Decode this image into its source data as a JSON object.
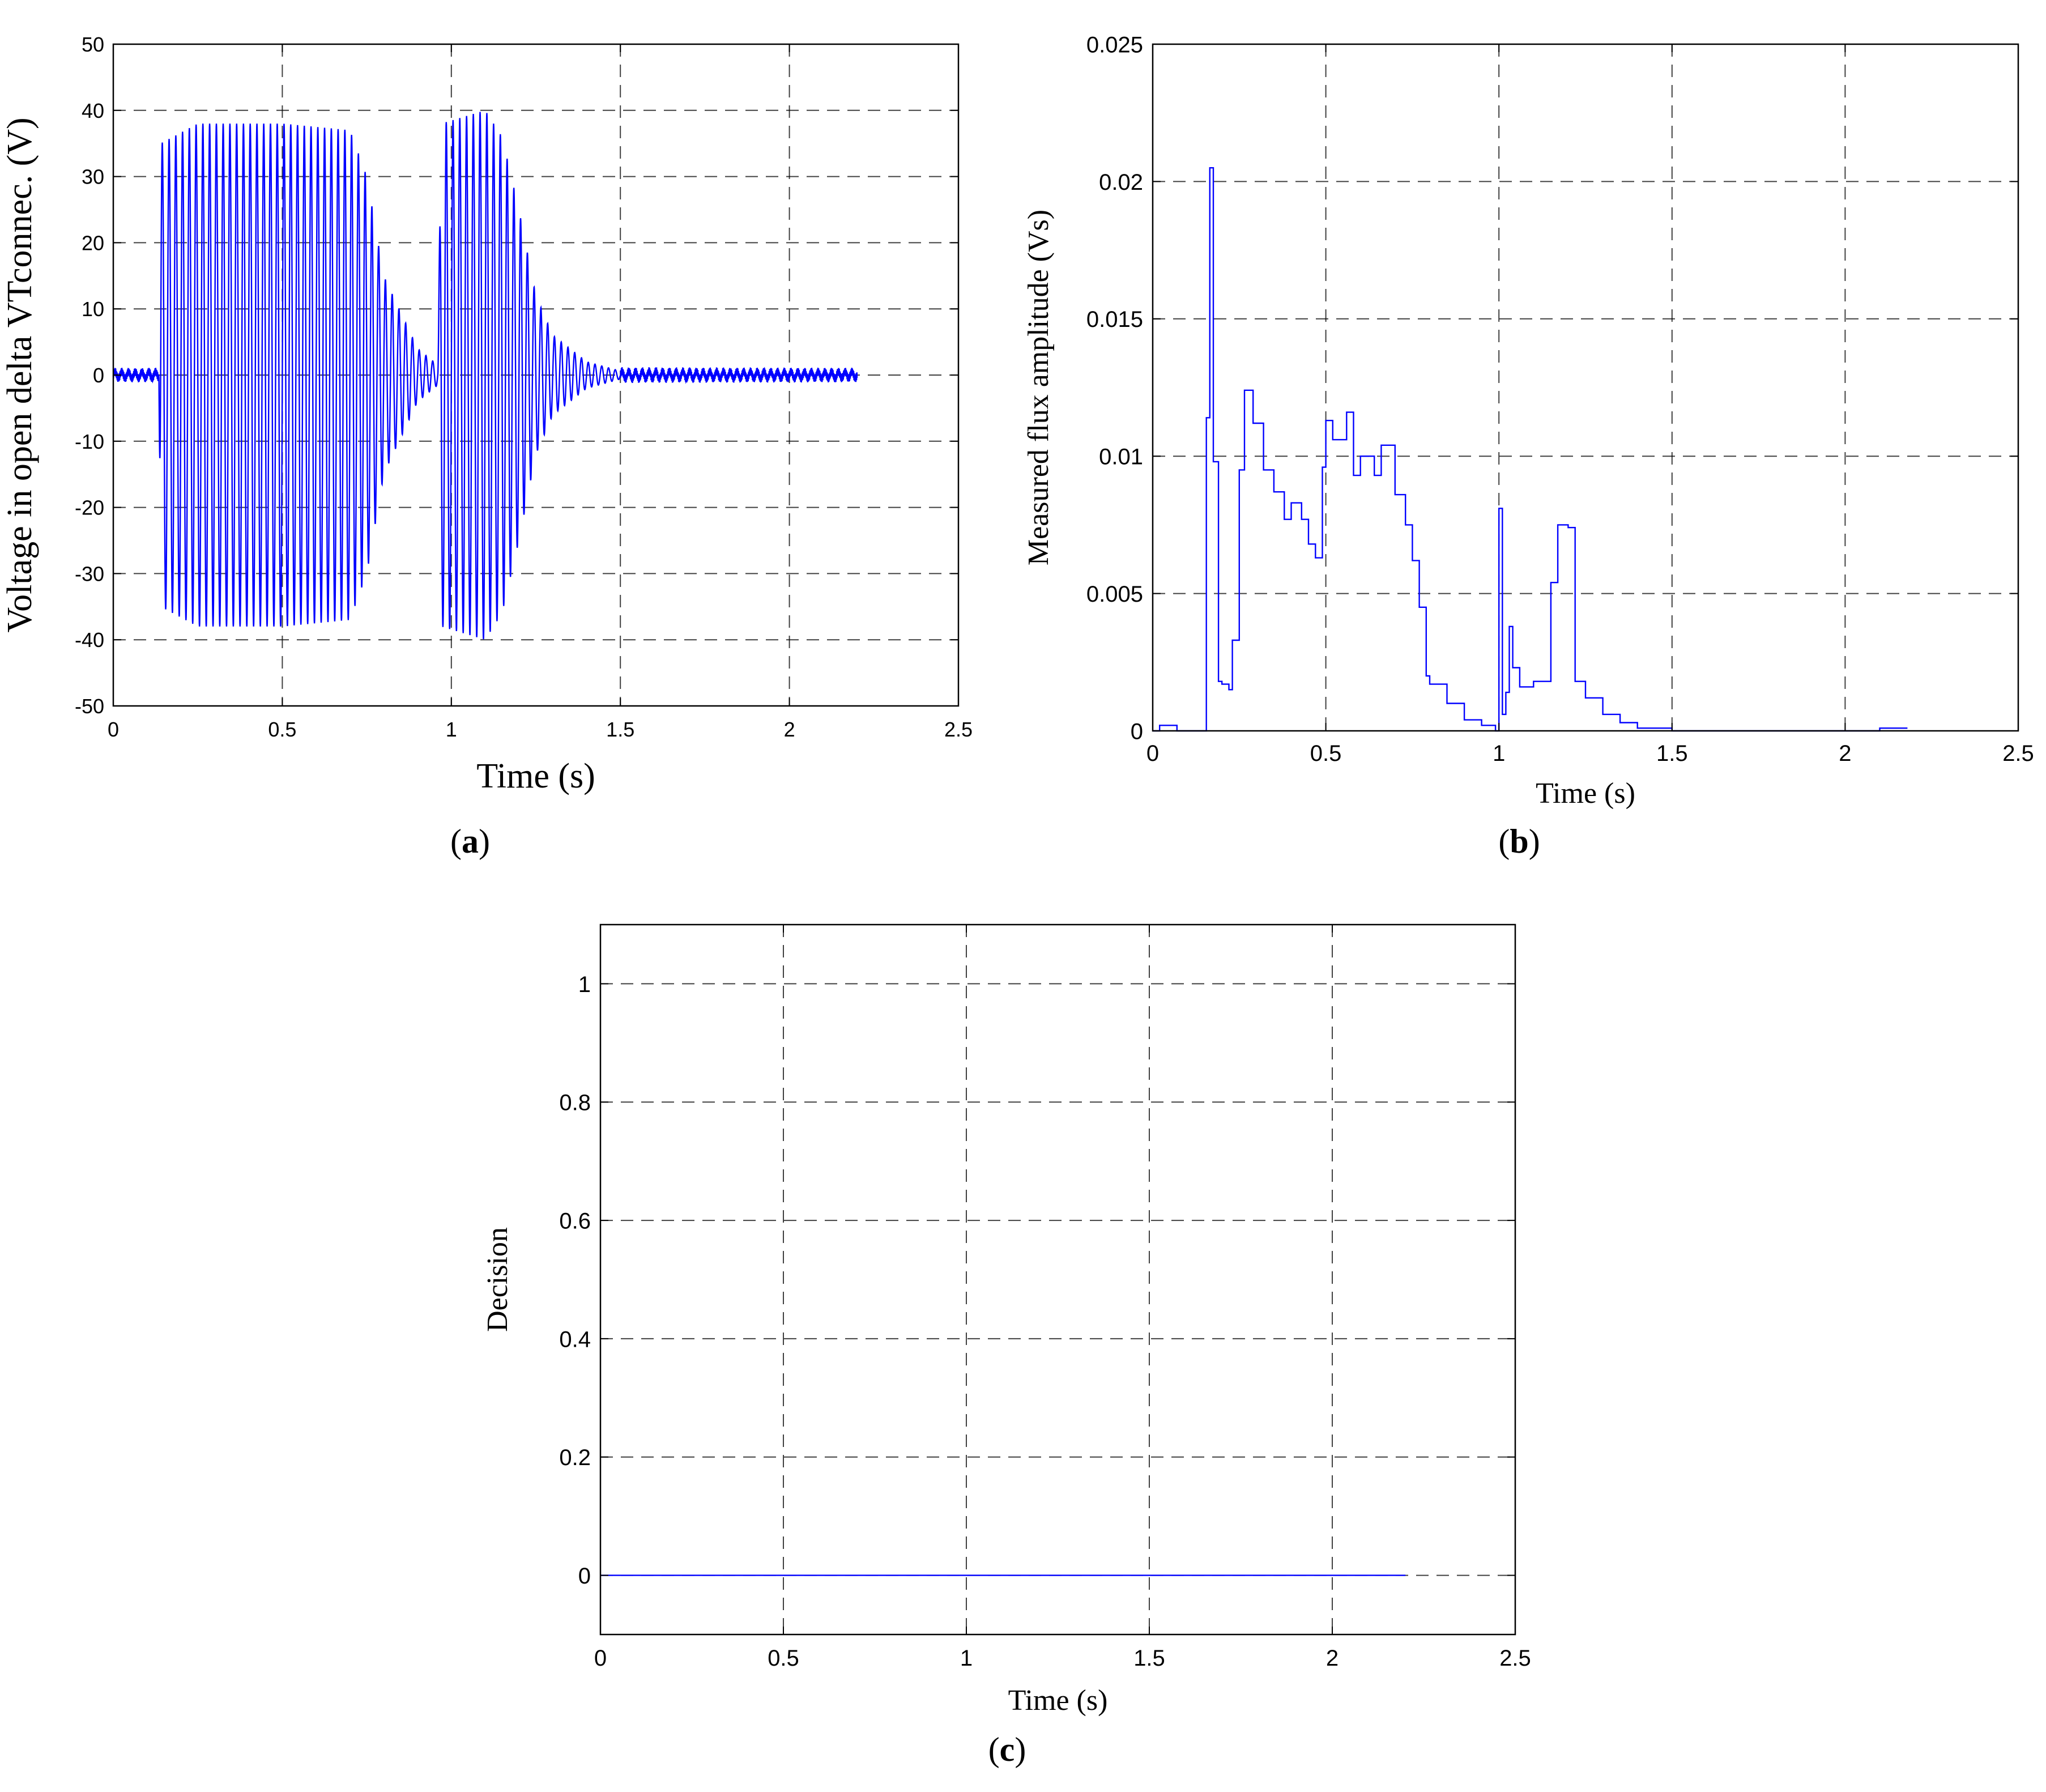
{
  "colors": {
    "line": "#0000ff",
    "grid": "#000000",
    "axes": "#000000",
    "background": "#ffffff"
  },
  "chart_data": [
    {
      "type": "line",
      "panel": "(a)",
      "xlabel": "Time (s)",
      "ylabel": "Voltage in open delta VTconnec. (V)",
      "xlim": [
        0,
        2.5
      ],
      "ylim": [
        -50,
        50
      ],
      "xticks": [
        0,
        0.5,
        1,
        1.5,
        2,
        2.5
      ],
      "xtick_labels": [
        "0",
        "0.5",
        "1",
        "1.5",
        "2",
        "2.5"
      ],
      "yticks": [
        -50,
        -40,
        -30,
        -20,
        -10,
        0,
        10,
        20,
        30,
        40,
        50
      ],
      "ytick_labels": [
        "-50",
        "-40",
        "-30",
        "-20",
        "-10",
        "0",
        "10",
        "20",
        "30",
        "40",
        "50"
      ],
      "grid": true,
      "series": [
        {
          "signal": "oscillating",
          "t_end": 2.2,
          "frequency_hz": 50,
          "envelope": [
            [
              0,
              0.5
            ],
            [
              0.135,
              0.5
            ],
            [
              0.14,
              35
            ],
            [
              0.25,
              38
            ],
            [
              0.5,
              38
            ],
            [
              0.7,
              37
            ],
            [
              0.75,
              30
            ],
            [
              0.8,
              15
            ],
            [
              0.9,
              4
            ],
            [
              0.96,
              1.5
            ],
            [
              0.97,
              38
            ],
            [
              1.1,
              40
            ],
            [
              1.15,
              36
            ],
            [
              1.2,
              25
            ],
            [
              1.25,
              12
            ],
            [
              1.3,
              6
            ],
            [
              1.4,
              2
            ],
            [
              1.5,
              0.6
            ],
            [
              2.2,
              0.5
            ]
          ]
        }
      ]
    },
    {
      "type": "line",
      "panel": "(b)",
      "xlabel": "Time (s)",
      "ylabel": "Measured flux amplitude  (Vs)",
      "xlim": [
        0,
        2.5
      ],
      "ylim": [
        0,
        0.025
      ],
      "xticks": [
        0,
        0.5,
        1,
        1.5,
        2,
        2.5
      ],
      "xtick_labels": [
        "0",
        "0.5",
        "1",
        "1.5",
        "2",
        "2.5"
      ],
      "yticks": [
        0,
        0.005,
        0.01,
        0.015,
        0.02,
        0.025
      ],
      "ytick_labels": [
        "0",
        "0.005",
        "0.01",
        "0.015",
        "0.02",
        "0.025"
      ],
      "grid": true,
      "series": [
        {
          "signal": "step",
          "x": [
            0,
            0.02,
            0.07,
            0.155,
            0.165,
            0.175,
            0.19,
            0.2,
            0.22,
            0.23,
            0.25,
            0.265,
            0.29,
            0.32,
            0.35,
            0.38,
            0.4,
            0.43,
            0.45,
            0.47,
            0.49,
            0.5,
            0.52,
            0.56,
            0.58,
            0.6,
            0.64,
            0.66,
            0.7,
            0.73,
            0.75,
            0.77,
            0.79,
            0.8,
            0.85,
            0.9,
            0.95,
            0.99,
            1.0,
            1.01,
            1.02,
            1.03,
            1.04,
            1.06,
            1.1,
            1.15,
            1.17,
            1.2,
            1.22,
            1.25,
            1.3,
            1.35,
            1.4,
            1.5,
            2.1,
            2.18
          ],
          "y": [
            0.0,
            0.0002,
            0.0,
            0.0114,
            0.0205,
            0.0098,
            0.0018,
            0.0017,
            0.0015,
            0.0033,
            0.0095,
            0.0124,
            0.0112,
            0.0095,
            0.0087,
            0.0077,
            0.0083,
            0.0077,
            0.0068,
            0.0063,
            0.0096,
            0.0113,
            0.0106,
            0.0116,
            0.0093,
            0.01,
            0.0093,
            0.0104,
            0.0086,
            0.0075,
            0.0062,
            0.0045,
            0.002,
            0.0017,
            0.001,
            0.0004,
            0.0002,
            0.0,
            0.0081,
            0.0006,
            0.0014,
            0.0038,
            0.0023,
            0.0016,
            0.0018,
            0.0054,
            0.0075,
            0.0074,
            0.0018,
            0.0012,
            0.0006,
            0.0003,
            0.0001,
            0.0,
            0.0001,
            0.0001
          ]
        }
      ]
    },
    {
      "type": "line",
      "panel": "(c)",
      "xlabel": "Time (s)",
      "ylabel": "Decision",
      "xlim": [
        0,
        2.5
      ],
      "ylim": [
        -0.1,
        1.1
      ],
      "xticks": [
        0,
        0.5,
        1,
        1.5,
        2,
        2.5
      ],
      "xtick_labels": [
        "0",
        "0.5",
        "1",
        "1.5",
        "2",
        "2.5"
      ],
      "yticks": [
        0,
        0.2,
        0.4,
        0.6,
        0.8,
        1
      ],
      "ytick_labels": [
        "0",
        "0.2",
        "0.4",
        "0.6",
        "0.8",
        "1"
      ],
      "grid": true,
      "series": [
        {
          "signal": "constant",
          "x": [
            0,
            2.2
          ],
          "y": [
            0,
            0
          ]
        }
      ]
    }
  ],
  "captions": {
    "a": "a",
    "b": "b",
    "c": "c"
  }
}
